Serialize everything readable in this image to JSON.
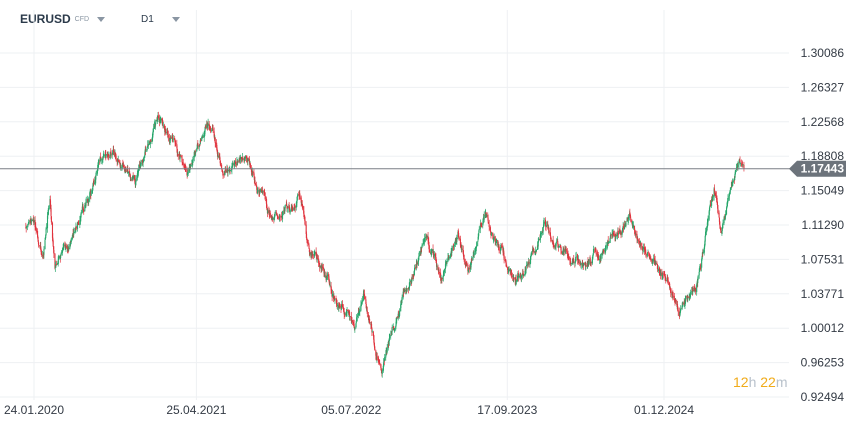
{
  "toolbar": {
    "symbol": "EURUSD",
    "symbol_suffix": "CFD",
    "timeframe": "D1",
    "caret_icon": "chevron-down-icon"
  },
  "countdown": {
    "hours": "12",
    "hours_unit": "h",
    "minutes": "22",
    "minutes_unit": "m"
  },
  "colors": {
    "up": "#26a66a",
    "down": "#e0333d",
    "price_line": "#7a7f85",
    "price_tag": "#6c737b",
    "grid": "#eef0f3"
  },
  "chart_data": {
    "type": "candlestick",
    "symbol": "EURUSD",
    "timeframe": "D1",
    "current_price": 1.17443,
    "y_ticks": [
      1.30086,
      1.26327,
      1.22568,
      1.18808,
      1.15049,
      1.1129,
      1.07531,
      1.03771,
      1.00012,
      0.96253,
      0.92494
    ],
    "y_ticks_text": [
      "1.30086",
      "1.26327",
      "1.22568",
      "1.18808",
      "1.15049",
      "1.11290",
      "1.07531",
      "1.03771",
      "1.00012",
      "0.96253",
      "0.92494"
    ],
    "ylim": [
      0.92494,
      1.3184
    ],
    "x_ticks": [
      "24.01.2020",
      "25.04.2021",
      "05.07.2022",
      "17.09.2023",
      "01.12.2024"
    ],
    "x_range": [
      "2020-01-01",
      "2025-07-14"
    ],
    "price_path": [
      [
        "2020-01-01",
        1.11
      ],
      [
        "2020-01-24",
        1.105
      ],
      [
        "2020-02-20",
        1.08
      ],
      [
        "2020-03-09",
        1.145
      ],
      [
        "2020-03-23",
        1.07
      ],
      [
        "2020-05-01",
        1.095
      ],
      [
        "2020-06-10",
        1.13
      ],
      [
        "2020-07-31",
        1.185
      ],
      [
        "2020-09-01",
        1.195
      ],
      [
        "2020-11-04",
        1.165
      ],
      [
        "2021-01-06",
        1.23
      ],
      [
        "2021-03-31",
        1.172
      ],
      [
        "2021-05-25",
        1.225
      ],
      [
        "2021-07-07",
        1.178
      ],
      [
        "2021-09-02",
        1.19
      ],
      [
        "2021-11-24",
        1.121
      ],
      [
        "2022-02-10",
        1.145
      ],
      [
        "2022-03-07",
        1.09
      ],
      [
        "2022-05-13",
        1.037
      ],
      [
        "2022-07-14",
        1.0
      ],
      [
        "2022-08-11",
        1.035
      ],
      [
        "2022-09-28",
        0.96
      ],
      [
        "2022-11-30",
        1.04
      ],
      [
        "2023-02-01",
        1.1
      ],
      [
        "2023-03-15",
        1.055
      ],
      [
        "2023-05-02",
        1.105
      ],
      [
        "2023-05-31",
        1.065
      ],
      [
        "2023-07-18",
        1.124
      ],
      [
        "2023-10-03",
        1.046
      ],
      [
        "2023-12-28",
        1.11
      ],
      [
        "2024-04-16",
        1.062
      ],
      [
        "2024-06-07",
        1.085
      ],
      [
        "2024-08-26",
        1.118
      ],
      [
        "2024-10-22",
        1.078
      ],
      [
        "2025-01-13",
        1.025
      ],
      [
        "2025-02-28",
        1.04
      ],
      [
        "2025-04-21",
        1.15
      ],
      [
        "2025-05-12",
        1.11
      ],
      [
        "2025-07-01",
        1.18
      ],
      [
        "2025-07-14",
        1.17443
      ]
    ]
  }
}
